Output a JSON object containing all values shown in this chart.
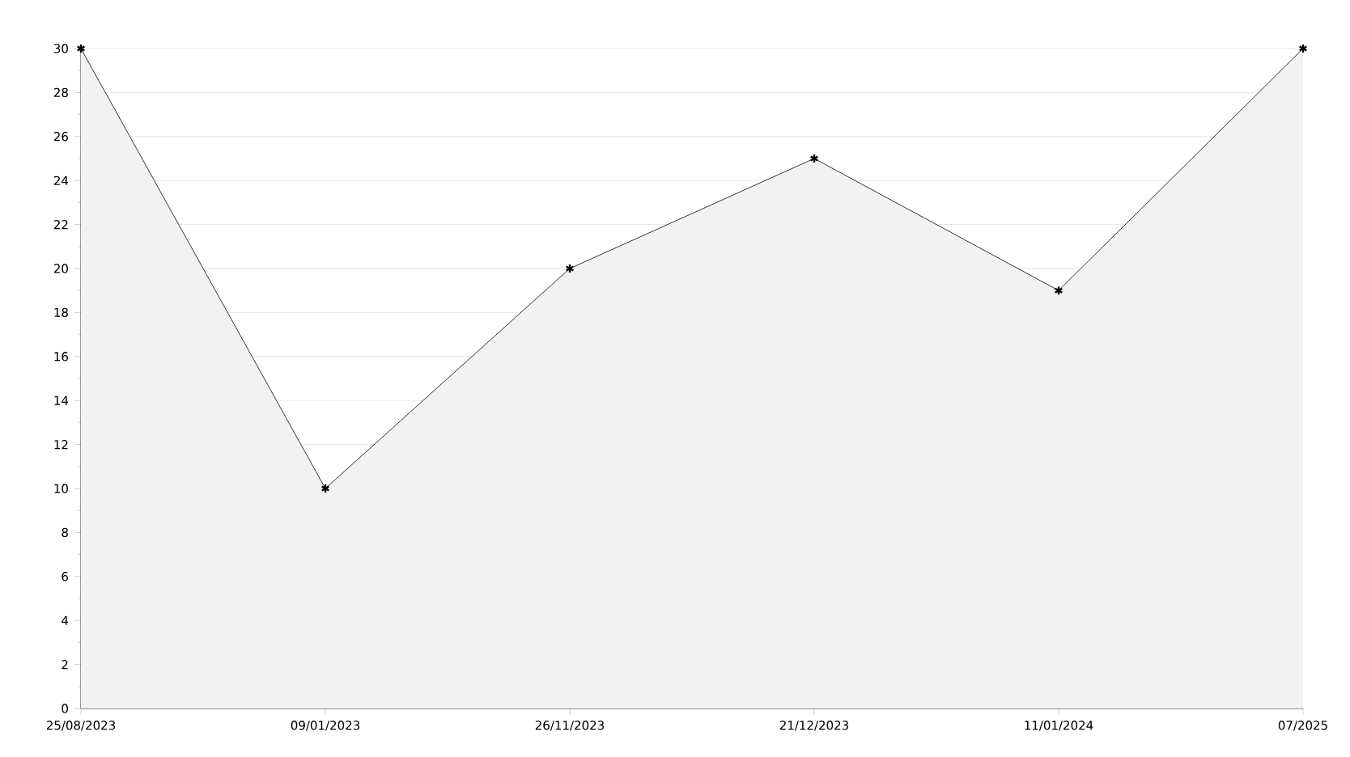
{
  "chart_data": {
    "type": "area",
    "categories": [
      "25/08/2023",
      "09/01/2023",
      "26/11/2023",
      "21/12/2023",
      "11/01/2024",
      "07/2025"
    ],
    "values": [
      30,
      10,
      20,
      25,
      19,
      30
    ],
    "color": "#000000",
    "ylim": [
      0,
      30
    ],
    "yticks": [
      0,
      2,
      4,
      6,
      8,
      10,
      12,
      14,
      16,
      18,
      20,
      22,
      24,
      26,
      28,
      30
    ],
    "grid": "y",
    "marker": "cross",
    "line_style": "solid"
  }
}
